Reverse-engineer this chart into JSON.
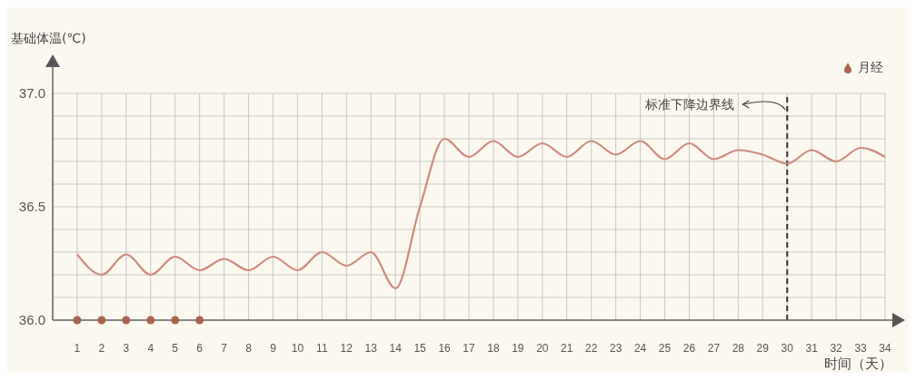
{
  "chart_data": {
    "type": "line",
    "ylabel": "基础体温(℃)",
    "xlabel": "时间（天）",
    "x": [
      1,
      2,
      3,
      4,
      5,
      6,
      7,
      8,
      9,
      10,
      11,
      12,
      13,
      14,
      15,
      16,
      17,
      18,
      19,
      20,
      21,
      22,
      23,
      24,
      25,
      26,
      27,
      28,
      29,
      30,
      31,
      32,
      33,
      34
    ],
    "xlim": [
      0,
      34
    ],
    "xticks": [
      1,
      2,
      3,
      4,
      5,
      6,
      7,
      8,
      9,
      10,
      11,
      12,
      13,
      14,
      15,
      16,
      17,
      18,
      19,
      20,
      21,
      22,
      23,
      24,
      25,
      26,
      27,
      28,
      29,
      30,
      31,
      32,
      33,
      34
    ],
    "ylim": [
      36.0,
      37.0
    ],
    "yticks": [
      {
        "value": 36.0,
        "label": "36.0"
      },
      {
        "value": 36.1,
        "label": null
      },
      {
        "value": 36.2,
        "label": null
      },
      {
        "value": 36.3,
        "label": null
      },
      {
        "value": 36.4,
        "label": null
      },
      36.5,
      {
        "value": 36.6,
        "label": null
      },
      {
        "value": 36.7,
        "label": null
      },
      {
        "value": 36.8,
        "label": null
      },
      {
        "value": 36.9,
        "label": null
      },
      {
        "value": 37.0,
        "label": "37.0"
      }
    ],
    "series": [
      {
        "type": "line",
        "color": "#cf8a7e",
        "values": [
          36.29,
          36.2,
          36.29,
          36.2,
          36.28,
          36.22,
          36.27,
          36.22,
          36.28,
          36.22,
          36.3,
          36.24,
          36.3,
          36.14,
          36.5,
          36.8,
          36.72,
          36.79,
          36.72,
          36.78,
          36.72,
          36.79,
          36.73,
          36.79,
          36.71,
          36.78,
          36.71,
          36.75,
          36.73,
          36.69,
          36.75,
          36.7,
          36.76,
          36.72
        ]
      },
      {
        "type": "scatter",
        "name": "月经",
        "color": "#a8654e",
        "marker": "circle",
        "x": [
          1,
          2,
          3,
          4,
          5,
          6
        ],
        "values": [
          36.0,
          36.0,
          36.0,
          36.0,
          36.0,
          36.0
        ]
      }
    ],
    "ref_lines": [
      {
        "axis": "x",
        "value": 30,
        "label": "标准下降边界线",
        "line_style": "dashed",
        "color": "#333333"
      }
    ],
    "grid": true,
    "marker": "none",
    "line_style": "solid",
    "legend": "top right"
  }
}
